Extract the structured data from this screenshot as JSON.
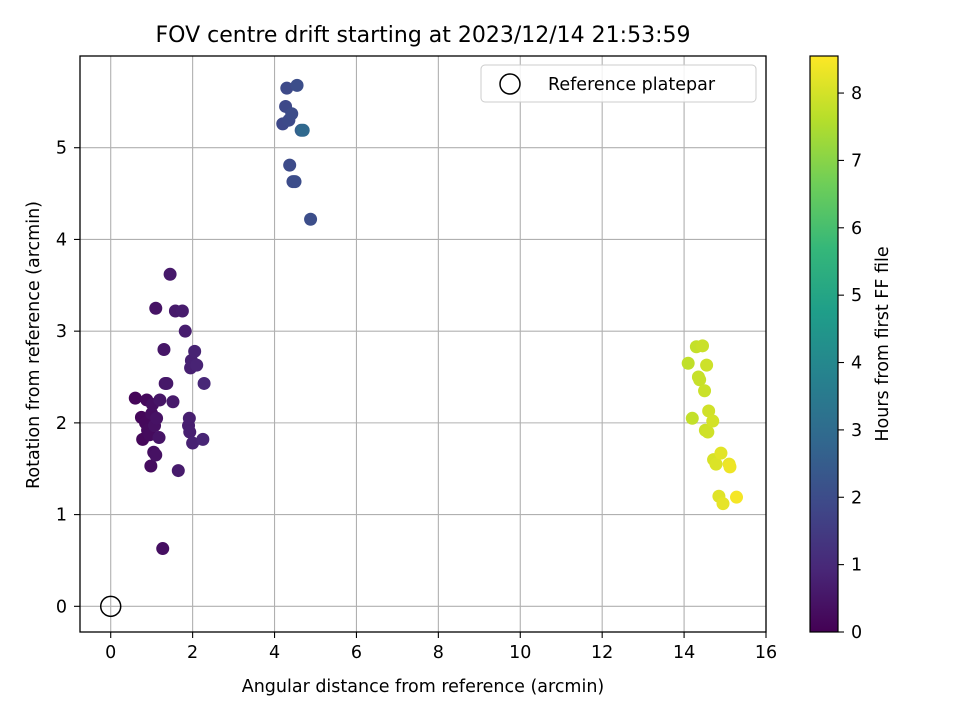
{
  "chart_data": {
    "type": "scatter",
    "title": "FOV centre drift starting at 2023/12/14 21:53:59",
    "xlabel": "Angular distance from reference (arcmin)",
    "ylabel": "Rotation from reference (arcmin)",
    "xlim": [
      -0.75,
      16.0
    ],
    "ylim": [
      -0.28,
      6.0
    ],
    "xticks": [
      0,
      2,
      4,
      6,
      8,
      10,
      12,
      14,
      16
    ],
    "yticks": [
      0,
      1,
      2,
      3,
      4,
      5
    ],
    "grid": true,
    "legend": {
      "position": "top-right",
      "entries": [
        "Reference platepar"
      ]
    },
    "colorbar": {
      "label": "Hours from first FF file",
      "colormap": "viridis",
      "range": [
        0,
        8.55
      ],
      "ticks": [
        0,
        1,
        2,
        3,
        4,
        5,
        6,
        7,
        8
      ]
    },
    "reference": {
      "x": 0,
      "y": 0,
      "label": "Reference platepar"
    },
    "points": [
      {
        "x": 0.6,
        "y": 2.27,
        "c": 0.12
      },
      {
        "x": 0.75,
        "y": 2.06,
        "c": 0.15
      },
      {
        "x": 0.78,
        "y": 1.82,
        "c": 0.16
      },
      {
        "x": 0.85,
        "y": 2.0,
        "c": 0.18
      },
      {
        "x": 0.88,
        "y": 2.25,
        "c": 0.2
      },
      {
        "x": 0.9,
        "y": 1.92,
        "c": 0.22
      },
      {
        "x": 0.95,
        "y": 1.87,
        "c": 0.25
      },
      {
        "x": 0.98,
        "y": 1.53,
        "c": 0.28
      },
      {
        "x": 1.0,
        "y": 2.1,
        "c": 0.3
      },
      {
        "x": 1.02,
        "y": 2.2,
        "c": 0.33
      },
      {
        "x": 1.05,
        "y": 1.68,
        "c": 0.35
      },
      {
        "x": 1.07,
        "y": 1.97,
        "c": 0.38
      },
      {
        "x": 1.1,
        "y": 1.65,
        "c": 0.4
      },
      {
        "x": 1.12,
        "y": 2.05,
        "c": 0.42
      },
      {
        "x": 1.1,
        "y": 3.25,
        "c": 0.45
      },
      {
        "x": 1.18,
        "y": 1.84,
        "c": 0.47
      },
      {
        "x": 1.2,
        "y": 2.25,
        "c": 0.48
      },
      {
        "x": 1.27,
        "y": 0.63,
        "c": 0.35
      },
      {
        "x": 1.3,
        "y": 2.8,
        "c": 0.5
      },
      {
        "x": 1.33,
        "y": 2.43,
        "c": 0.52
      },
      {
        "x": 1.37,
        "y": 2.43,
        "c": 0.55
      },
      {
        "x": 1.45,
        "y": 3.62,
        "c": 0.58
      },
      {
        "x": 1.52,
        "y": 2.23,
        "c": 0.6
      },
      {
        "x": 1.58,
        "y": 3.22,
        "c": 0.62
      },
      {
        "x": 1.65,
        "y": 1.48,
        "c": 0.64
      },
      {
        "x": 1.75,
        "y": 3.22,
        "c": 0.66
      },
      {
        "x": 1.82,
        "y": 3.0,
        "c": 0.68
      },
      {
        "x": 1.9,
        "y": 1.97,
        "c": 0.7
      },
      {
        "x": 1.92,
        "y": 2.05,
        "c": 0.72
      },
      {
        "x": 1.93,
        "y": 1.9,
        "c": 0.74
      },
      {
        "x": 1.95,
        "y": 2.6,
        "c": 0.76
      },
      {
        "x": 1.97,
        "y": 2.68,
        "c": 0.78
      },
      {
        "x": 2.0,
        "y": 1.78,
        "c": 0.8
      },
      {
        "x": 2.05,
        "y": 2.78,
        "c": 0.82
      },
      {
        "x": 2.1,
        "y": 2.63,
        "c": 0.84
      },
      {
        "x": 2.25,
        "y": 1.82,
        "c": 0.88
      },
      {
        "x": 2.28,
        "y": 2.43,
        "c": 0.92
      },
      {
        "x": 4.2,
        "y": 5.26,
        "c": 1.88
      },
      {
        "x": 4.27,
        "y": 5.45,
        "c": 1.9
      },
      {
        "x": 4.3,
        "y": 5.65,
        "c": 1.92
      },
      {
        "x": 4.35,
        "y": 5.3,
        "c": 1.94
      },
      {
        "x": 4.37,
        "y": 4.81,
        "c": 1.96
      },
      {
        "x": 4.42,
        "y": 5.37,
        "c": 1.98
      },
      {
        "x": 4.45,
        "y": 4.63,
        "c": 2.0
      },
      {
        "x": 4.5,
        "y": 4.63,
        "c": 2.02
      },
      {
        "x": 4.55,
        "y": 5.68,
        "c": 2.04
      },
      {
        "x": 4.65,
        "y": 5.19,
        "c": 2.6
      },
      {
        "x": 4.7,
        "y": 5.19,
        "c": 2.9
      },
      {
        "x": 4.88,
        "y": 4.22,
        "c": 2.06
      },
      {
        "x": 14.1,
        "y": 2.65,
        "c": 7.75
      },
      {
        "x": 14.2,
        "y": 2.05,
        "c": 7.78
      },
      {
        "x": 14.3,
        "y": 2.83,
        "c": 7.8
      },
      {
        "x": 14.35,
        "y": 2.5,
        "c": 7.82
      },
      {
        "x": 14.38,
        "y": 2.47,
        "c": 7.84
      },
      {
        "x": 14.45,
        "y": 2.84,
        "c": 7.86
      },
      {
        "x": 14.5,
        "y": 2.35,
        "c": 7.88
      },
      {
        "x": 14.52,
        "y": 1.92,
        "c": 7.9
      },
      {
        "x": 14.55,
        "y": 2.63,
        "c": 7.92
      },
      {
        "x": 14.58,
        "y": 1.9,
        "c": 7.94
      },
      {
        "x": 14.6,
        "y": 2.13,
        "c": 7.96
      },
      {
        "x": 14.7,
        "y": 2.02,
        "c": 8.0
      },
      {
        "x": 14.72,
        "y": 1.6,
        "c": 8.05
      },
      {
        "x": 14.78,
        "y": 1.55,
        "c": 8.1
      },
      {
        "x": 14.85,
        "y": 1.2,
        "c": 8.15
      },
      {
        "x": 14.9,
        "y": 1.67,
        "c": 8.2
      },
      {
        "x": 14.95,
        "y": 1.12,
        "c": 8.25
      },
      {
        "x": 15.1,
        "y": 1.55,
        "c": 8.3
      },
      {
        "x": 15.12,
        "y": 1.52,
        "c": 8.35
      },
      {
        "x": 15.28,
        "y": 1.19,
        "c": 8.45
      }
    ]
  }
}
